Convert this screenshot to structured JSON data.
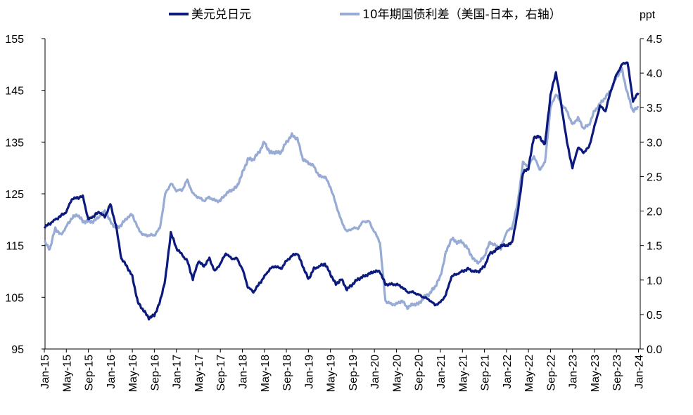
{
  "chart_data": {
    "type": "line",
    "title": "",
    "legend_position": "top",
    "grid": false,
    "left_axis": {
      "ylim": [
        95,
        155
      ],
      "ticks": [
        "95",
        "105",
        "115",
        "125",
        "135",
        "145",
        "155"
      ]
    },
    "right_axis": {
      "unit": "ppt",
      "ylim": [
        0.0,
        4.5
      ],
      "ticks": [
        "0.0",
        "0.5",
        "1.0",
        "1.5",
        "2.0",
        "2.5",
        "3.0",
        "3.5",
        "4.0",
        "4.5"
      ]
    },
    "x_ticks": [
      "Jan-15",
      "May-15",
      "Sep-15",
      "Jan-16",
      "May-16",
      "Sep-16",
      "Jan-17",
      "May-17",
      "Sep-17",
      "Jan-18",
      "May-18",
      "Sep-18",
      "Jan-19",
      "May-19",
      "Sep-19",
      "Jan-20",
      "May-20",
      "Sep-20",
      "Jan-21",
      "May-21",
      "Sep-21",
      "Jan-22",
      "May-22",
      "Sep-22",
      "Jan-23",
      "May-23",
      "Sep-23",
      "Jan-24"
    ],
    "series": [
      {
        "name": "美元兑日元",
        "axis": "left",
        "color": "#0b1a7c",
        "x": [
          "2015-01",
          "2015-03",
          "2015-05",
          "2015-06",
          "2015-08",
          "2015-09",
          "2015-11",
          "2015-12",
          "2016-01",
          "2016-02",
          "2016-03",
          "2016-04",
          "2016-05",
          "2016-06",
          "2016-07",
          "2016-08",
          "2016-09",
          "2016-10",
          "2016-11",
          "2016-12",
          "2017-01",
          "2017-03",
          "2017-04",
          "2017-05",
          "2017-06",
          "2017-07",
          "2017-08",
          "2017-09",
          "2017-10",
          "2017-11",
          "2017-12",
          "2018-01",
          "2018-02",
          "2018-03",
          "2018-05",
          "2018-06",
          "2018-07",
          "2018-08",
          "2018-09",
          "2018-10",
          "2018-11",
          "2018-12",
          "2019-01",
          "2019-02",
          "2019-04",
          "2019-05",
          "2019-06",
          "2019-07",
          "2019-08",
          "2019-09",
          "2019-10",
          "2019-11",
          "2019-12",
          "2020-01",
          "2020-02",
          "2020-03",
          "2020-04",
          "2020-05",
          "2020-06",
          "2020-07",
          "2020-08",
          "2020-09",
          "2020-10",
          "2020-11",
          "2020-12",
          "2021-01",
          "2021-02",
          "2021-03",
          "2021-04",
          "2021-06",
          "2021-07",
          "2021-08",
          "2021-09",
          "2021-10",
          "2021-11",
          "2021-12",
          "2022-01",
          "2022-02",
          "2022-03",
          "2022-04",
          "2022-05",
          "2022-06",
          "2022-07",
          "2022-08",
          "2022-09",
          "2022-10",
          "2022-11",
          "2022-12",
          "2023-01",
          "2023-02",
          "2023-03",
          "2023-04",
          "2023-05",
          "2023-06",
          "2023-07",
          "2023-08",
          "2023-09",
          "2023-10",
          "2023-11",
          "2023-12",
          "2024-01"
        ],
        "values": [
          118.5,
          120.0,
          121.5,
          124.0,
          124.5,
          120.0,
          121.5,
          120.5,
          123.0,
          119.0,
          112.5,
          111.0,
          109.0,
          104.0,
          102.5,
          101.0,
          101.5,
          104.0,
          108.5,
          117.5,
          114.5,
          112.0,
          108.5,
          112.0,
          111.0,
          112.5,
          110.0,
          111.5,
          113.5,
          112.5,
          112.5,
          110.5,
          107.0,
          106.0,
          109.0,
          110.5,
          111.0,
          110.5,
          112.0,
          113.0,
          113.5,
          111.0,
          108.5,
          110.5,
          111.5,
          109.5,
          107.5,
          108.5,
          106.5,
          107.5,
          108.5,
          109.0,
          109.5,
          110.0,
          110.0,
          107.5,
          107.5,
          107.5,
          107.0,
          106.0,
          106.0,
          105.5,
          105.0,
          104.5,
          103.5,
          104.0,
          105.5,
          109.0,
          109.5,
          110.5,
          110.0,
          110.0,
          111.0,
          113.5,
          114.0,
          115.0,
          115.0,
          115.5,
          121.0,
          129.0,
          130.0,
          136.0,
          136.0,
          134.5,
          144.0,
          148.5,
          142.0,
          135.0,
          130.0,
          134.0,
          133.0,
          134.0,
          138.0,
          142.0,
          141.0,
          145.0,
          148.0,
          150.0,
          150.5,
          143.0,
          144.5
        ]
      },
      {
        "name": "10年期国债利差（美国-日本，右轴）",
        "axis": "right",
        "color": "#97abd5",
        "x": [
          "2015-01",
          "2015-02",
          "2015-03",
          "2015-04",
          "2015-06",
          "2015-07",
          "2015-08",
          "2015-09",
          "2015-10",
          "2015-12",
          "2016-01",
          "2016-02",
          "2016-03",
          "2016-04",
          "2016-05",
          "2016-06",
          "2016-07",
          "2016-08",
          "2016-09",
          "2016-10",
          "2016-11",
          "2016-12",
          "2017-01",
          "2017-02",
          "2017-03",
          "2017-04",
          "2017-05",
          "2017-06",
          "2017-07",
          "2017-08",
          "2017-09",
          "2017-10",
          "2017-11",
          "2017-12",
          "2018-01",
          "2018-02",
          "2018-03",
          "2018-04",
          "2018-05",
          "2018-06",
          "2018-07",
          "2018-08",
          "2018-09",
          "2018-10",
          "2018-11",
          "2018-12",
          "2019-01",
          "2019-02",
          "2019-03",
          "2019-04",
          "2019-05",
          "2019-06",
          "2019-07",
          "2019-08",
          "2019-09",
          "2019-10",
          "2019-11",
          "2019-12",
          "2020-01",
          "2020-02",
          "2020-03",
          "2020-04",
          "2020-05",
          "2020-06",
          "2020-07",
          "2020-08",
          "2020-09",
          "2020-10",
          "2020-11",
          "2020-12",
          "2021-01",
          "2021-02",
          "2021-03",
          "2021-04",
          "2021-05",
          "2021-06",
          "2021-07",
          "2021-08",
          "2021-09",
          "2021-10",
          "2021-11",
          "2021-12",
          "2022-01",
          "2022-02",
          "2022-03",
          "2022-04",
          "2022-05",
          "2022-06",
          "2022-07",
          "2022-08",
          "2022-09",
          "2022-10",
          "2022-11",
          "2022-12",
          "2023-01",
          "2023-02",
          "2023-03",
          "2023-04",
          "2023-05",
          "2023-06",
          "2023-07",
          "2023-08",
          "2023-09",
          "2023-10",
          "2023-11",
          "2023-12",
          "2024-01"
        ],
        "values": [
          1.55,
          1.45,
          1.75,
          1.65,
          1.9,
          1.95,
          1.85,
          1.85,
          1.85,
          2.0,
          1.85,
          1.75,
          1.8,
          1.9,
          1.95,
          1.75,
          1.65,
          1.65,
          1.65,
          1.75,
          2.25,
          2.4,
          2.3,
          2.3,
          2.45,
          2.25,
          2.2,
          2.15,
          2.2,
          2.15,
          2.15,
          2.25,
          2.3,
          2.35,
          2.55,
          2.75,
          2.75,
          2.85,
          3.0,
          2.85,
          2.85,
          2.85,
          3.0,
          3.1,
          3.05,
          2.75,
          2.7,
          2.65,
          2.5,
          2.5,
          2.35,
          2.1,
          1.85,
          1.7,
          1.75,
          1.75,
          1.85,
          1.85,
          1.7,
          1.55,
          0.7,
          0.65,
          0.65,
          0.7,
          0.6,
          0.65,
          0.65,
          0.75,
          0.8,
          0.9,
          1.05,
          1.4,
          1.6,
          1.55,
          1.55,
          1.45,
          1.3,
          1.25,
          1.35,
          1.55,
          1.5,
          1.45,
          1.7,
          1.75,
          2.1,
          2.7,
          2.65,
          2.8,
          2.6,
          2.7,
          3.5,
          3.7,
          3.55,
          3.45,
          3.25,
          3.35,
          3.2,
          3.25,
          3.45,
          3.55,
          3.65,
          3.75,
          3.95,
          4.05,
          3.7,
          3.45,
          3.5
        ]
      }
    ]
  }
}
